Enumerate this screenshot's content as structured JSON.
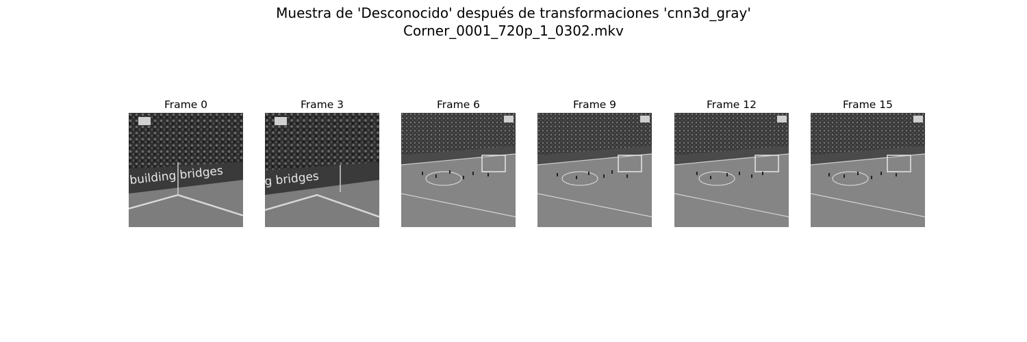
{
  "figure": {
    "title_line1": "Muestra de 'Desconocido' después de transformaciones 'cnn3d_gray'",
    "title_line2": "Corner_0001_720p_1_0302.mkv"
  },
  "frames": [
    {
      "label": "Frame 0",
      "view": "close",
      "banner_text": "building bridges"
    },
    {
      "label": "Frame 3",
      "view": "close",
      "banner_text": "g bridges"
    },
    {
      "label": "Frame 6",
      "view": "wide"
    },
    {
      "label": "Frame 9",
      "view": "wide"
    },
    {
      "label": "Frame 12",
      "view": "wide"
    },
    {
      "label": "Frame 15",
      "view": "wide"
    }
  ]
}
